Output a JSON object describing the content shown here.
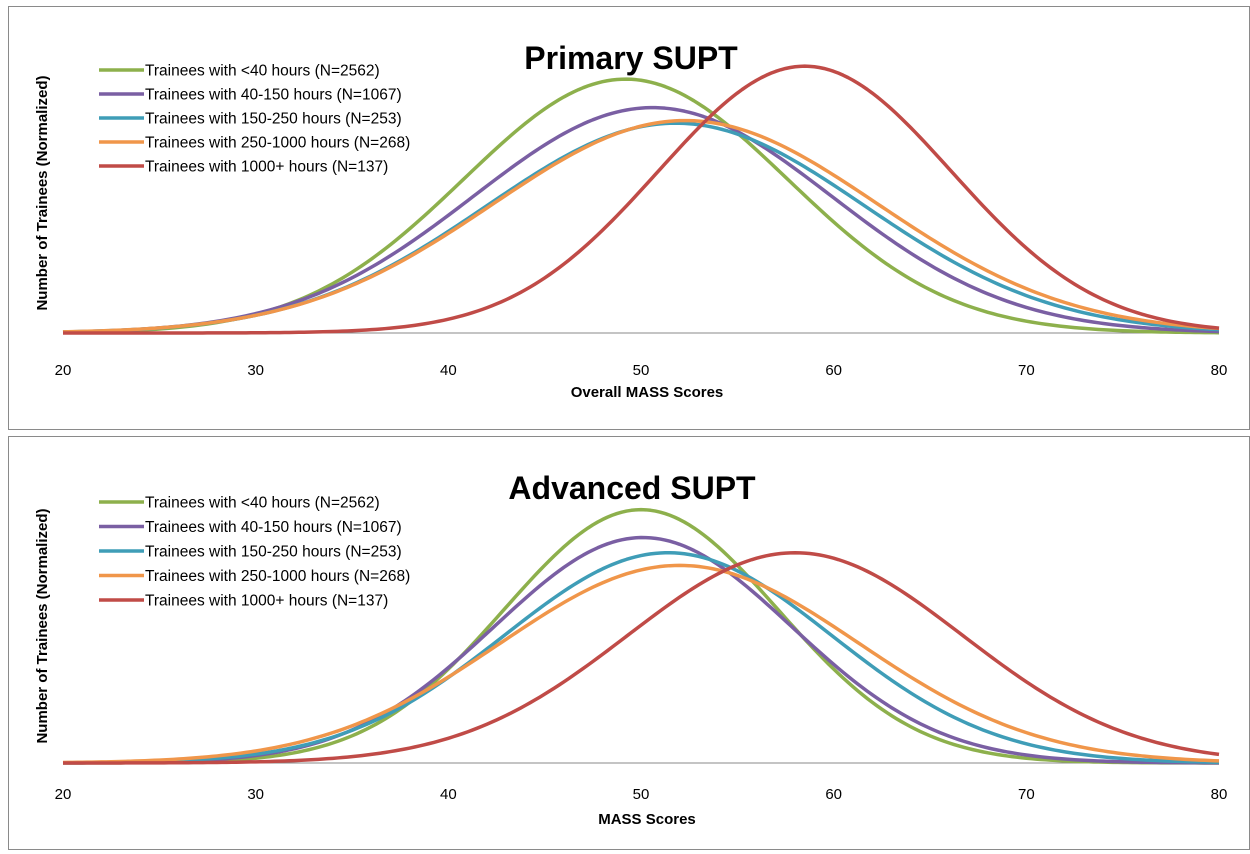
{
  "chart_data": [
    {
      "type": "line",
      "title": "Primary SUPT",
      "xlabel": "Overall MASS Scores",
      "ylabel": "Number of Trainees (Normalized)",
      "xlim": [
        20,
        80
      ],
      "ylim": [
        0,
        1.05
      ],
      "x_ticks": [
        "20",
        "30",
        "40",
        "50",
        "60",
        "70",
        "80"
      ],
      "legend_position": "top-left",
      "series": [
        {
          "name": "Trainees with <40 hours (N=2562)",
          "color": "#8db04c",
          "mean": 49.2,
          "sd": 8.4,
          "peak": 0.98,
          "x": [
            20,
            25,
            30,
            35,
            40,
            45,
            50,
            55,
            60,
            65,
            70,
            75,
            80
          ],
          "y": [
            0.0,
            0.01,
            0.07,
            0.23,
            0.54,
            0.87,
            0.98,
            0.77,
            0.43,
            0.17,
            0.04,
            0.01,
            0.0
          ]
        },
        {
          "name": "Trainees with 40-150 hours (N=1067)",
          "color": "#7a5fa3",
          "mean": 50.6,
          "sd": 9.3,
          "peak": 0.87,
          "x": [
            20,
            25,
            30,
            35,
            40,
            45,
            50,
            55,
            60,
            65,
            70,
            75,
            80
          ],
          "y": [
            0.0,
            0.02,
            0.08,
            0.22,
            0.45,
            0.72,
            0.87,
            0.78,
            0.52,
            0.26,
            0.1,
            0.03,
            0.0
          ]
        },
        {
          "name": "Trainees with 150-250 hours (N=253)",
          "color": "#3f9db7",
          "mean": 51.8,
          "sd": 9.8,
          "peak": 0.81,
          "x": [
            20,
            25,
            30,
            35,
            40,
            45,
            50,
            55,
            60,
            65,
            70,
            75,
            80
          ],
          "y": [
            0.0,
            0.02,
            0.07,
            0.18,
            0.39,
            0.63,
            0.8,
            0.77,
            0.57,
            0.32,
            0.14,
            0.05,
            0.01
          ]
        },
        {
          "name": "Trainees with 250-1000 hours (N=268)",
          "color": "#f0964a",
          "mean": 52.3,
          "sd": 10.0,
          "peak": 0.82,
          "x": [
            20,
            25,
            30,
            35,
            40,
            45,
            50,
            55,
            60,
            65,
            70,
            75,
            80
          ],
          "y": [
            0.0,
            0.01,
            0.06,
            0.16,
            0.35,
            0.58,
            0.78,
            0.79,
            0.61,
            0.36,
            0.16,
            0.06,
            0.02
          ]
        },
        {
          "name": "Trainees with 1000+ hours (N=137)",
          "color": "#c04b47",
          "mean": 58.5,
          "sd": 7.6,
          "peak": 1.03,
          "x": [
            20,
            25,
            30,
            35,
            40,
            45,
            50,
            55,
            60,
            65,
            70,
            75,
            80
          ],
          "y": [
            0.0,
            0.0,
            0.0,
            0.01,
            0.03,
            0.21,
            0.54,
            0.93,
            1.02,
            0.74,
            0.33,
            0.09,
            0.02
          ]
        }
      ]
    },
    {
      "type": "line",
      "title": "Advanced SUPT",
      "xlabel": "MASS Scores",
      "ylabel": "Number of Trainees (Normalized)",
      "xlim": [
        20,
        80
      ],
      "ylim": [
        0,
        1.05
      ],
      "x_ticks": [
        "20",
        "30",
        "40",
        "50",
        "60",
        "70",
        "80"
      ],
      "legend_position": "top-left",
      "series": [
        {
          "name": "Trainees with <40 hours (N=2562)",
          "color": "#8db04c",
          "mean": 50.0,
          "sd": 7.1,
          "peak": 1.0,
          "x": [
            20,
            25,
            30,
            35,
            40,
            45,
            50,
            55,
            60,
            65,
            70,
            75,
            80
          ],
          "y": [
            0.0,
            0.0,
            0.03,
            0.14,
            0.43,
            0.78,
            1.0,
            0.79,
            0.39,
            0.11,
            0.02,
            0.0,
            0.0
          ]
        },
        {
          "name": "Trainees with 40-150 hours (N=1067)",
          "color": "#7a5fa3",
          "mean": 50.1,
          "sd": 7.7,
          "peak": 0.89,
          "x": [
            20,
            25,
            30,
            35,
            40,
            45,
            50,
            55,
            60,
            65,
            70,
            75,
            80
          ],
          "y": [
            0.0,
            0.0,
            0.03,
            0.14,
            0.41,
            0.72,
            0.89,
            0.72,
            0.39,
            0.14,
            0.03,
            0.0,
            0.0
          ]
        },
        {
          "name": "Trainees with 150-250 hours (N=253)",
          "color": "#3f9db7",
          "mean": 51.4,
          "sd": 8.5,
          "peak": 0.83,
          "x": [
            20,
            25,
            30,
            35,
            40,
            45,
            50,
            55,
            60,
            65,
            70,
            75,
            80
          ],
          "y": [
            0.0,
            0.01,
            0.04,
            0.14,
            0.36,
            0.63,
            0.82,
            0.76,
            0.5,
            0.23,
            0.08,
            0.02,
            0.0
          ]
        },
        {
          "name": "Trainees with 250-1000 hours (N=268)",
          "color": "#f0964a",
          "mean": 52.0,
          "sd": 9.3,
          "peak": 0.78,
          "x": [
            20,
            25,
            30,
            35,
            40,
            45,
            50,
            55,
            60,
            65,
            70,
            75,
            80
          ],
          "y": [
            0.0,
            0.01,
            0.05,
            0.16,
            0.35,
            0.59,
            0.76,
            0.74,
            0.54,
            0.3,
            0.12,
            0.04,
            0.01
          ]
        },
        {
          "name": "Trainees with 1000+ hours (N=137)",
          "color": "#c04b47",
          "mean": 58.0,
          "sd": 8.7,
          "peak": 0.83,
          "x": [
            20,
            25,
            30,
            35,
            40,
            45,
            50,
            55,
            60,
            65,
            70,
            75,
            80
          ],
          "y": [
            0.0,
            0.0,
            0.0,
            0.02,
            0.1,
            0.27,
            0.54,
            0.79,
            0.81,
            0.57,
            0.28,
            0.09,
            0.02
          ]
        }
      ]
    }
  ]
}
